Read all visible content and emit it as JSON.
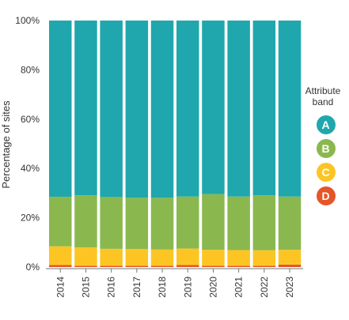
{
  "chart_data": {
    "type": "bar",
    "stacked": true,
    "categories": [
      "2014",
      "2015",
      "2016",
      "2017",
      "2018",
      "2019",
      "2020",
      "2021",
      "2022",
      "2023"
    ],
    "ylabel": "Percentage of sites",
    "ylim": [
      0,
      100
    ],
    "yticks": [
      "0%",
      "20%",
      "40%",
      "60%",
      "80%",
      "100%"
    ],
    "grid": false,
    "legend": {
      "title": "Attribute band",
      "placement": "right"
    },
    "series": [
      {
        "name": "D",
        "color": "#e4562a",
        "values": [
          0.8,
          0.5,
          0.5,
          0.5,
          0.5,
          0.8,
          0.5,
          0.5,
          0.5,
          1.0
        ]
      },
      {
        "name": "C",
        "color": "#fdc524",
        "values": [
          7.6,
          7.5,
          6.9,
          6.8,
          6.6,
          6.7,
          6.5,
          6.4,
          6.3,
          6.0
        ]
      },
      {
        "name": "B",
        "color": "#8ab84f",
        "values": [
          20.1,
          21.1,
          21.0,
          20.8,
          21.0,
          21.1,
          22.6,
          21.7,
          22.3,
          21.6
        ]
      },
      {
        "name": "A",
        "color": "#20a7ad",
        "values": [
          71.5,
          70.9,
          71.6,
          71.9,
          71.9,
          71.4,
          70.4,
          71.4,
          70.9,
          71.4
        ]
      }
    ]
  }
}
